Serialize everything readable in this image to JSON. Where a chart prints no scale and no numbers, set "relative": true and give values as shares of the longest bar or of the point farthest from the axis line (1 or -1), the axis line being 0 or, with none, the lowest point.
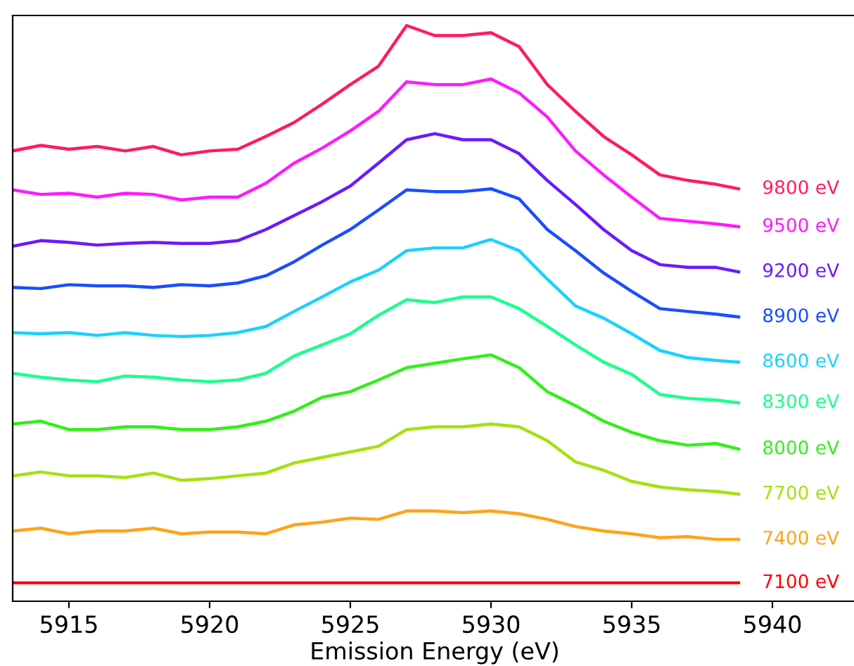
{
  "chart_data": {
    "type": "line",
    "relative": true,
    "xlabel": "Emission Energy (eV)",
    "xlim": [
      5913,
      5943
    ],
    "xticks": [
      5915,
      5920,
      5925,
      5930,
      5935,
      5940
    ],
    "tick_labels": "x",
    "grid": false,
    "legend": false,
    "marker": "none",
    "line_style": "solid",
    "x": [
      5913,
      5914,
      5915,
      5916,
      5917,
      5918,
      5919,
      5920,
      5921,
      5922,
      5923,
      5924,
      5925,
      5926,
      5927,
      5928,
      5929,
      5930,
      5931,
      5932,
      5933,
      5934,
      5935,
      5936,
      5937,
      5938,
      5938.8
    ],
    "series": [
      {
        "name": "7100 eV",
        "color": "#ff0000",
        "values": [
          0,
          0,
          0,
          0,
          0,
          0,
          0,
          0,
          0,
          0,
          0,
          0,
          0,
          0,
          0,
          0,
          0,
          0,
          0,
          0,
          0,
          0,
          0,
          0,
          0,
          0,
          0
        ]
      },
      {
        "name": "7400 eV",
        "color": "#ffa31a",
        "values": [
          0.093,
          0.098,
          0.088,
          0.093,
          0.093,
          0.098,
          0.088,
          0.091,
          0.091,
          0.088,
          0.104,
          0.109,
          0.116,
          0.114,
          0.129,
          0.129,
          0.126,
          0.129,
          0.124,
          0.114,
          0.101,
          0.093,
          0.088,
          0.081,
          0.083,
          0.078,
          0.078
        ]
      },
      {
        "name": "7700 eV",
        "color": "#a6e00f",
        "values": [
          0.192,
          0.199,
          0.192,
          0.192,
          0.189,
          0.197,
          0.184,
          0.187,
          0.192,
          0.197,
          0.215,
          0.225,
          0.235,
          0.245,
          0.275,
          0.28,
          0.28,
          0.285,
          0.28,
          0.255,
          0.217,
          0.202,
          0.182,
          0.172,
          0.167,
          0.164,
          0.159
        ]
      },
      {
        "name": "8000 eV",
        "color": "#33ee1a",
        "values": [
          0.285,
          0.29,
          0.275,
          0.275,
          0.28,
          0.28,
          0.275,
          0.275,
          0.28,
          0.29,
          0.308,
          0.333,
          0.343,
          0.364,
          0.386,
          0.394,
          0.402,
          0.409,
          0.386,
          0.343,
          0.318,
          0.29,
          0.27,
          0.255,
          0.247,
          0.25,
          0.24
        ]
      },
      {
        "name": "8300 eV",
        "color": "#1aff8c",
        "values": [
          0.376,
          0.369,
          0.364,
          0.361,
          0.371,
          0.369,
          0.364,
          0.361,
          0.364,
          0.376,
          0.407,
          0.427,
          0.447,
          0.48,
          0.508,
          0.503,
          0.513,
          0.513,
          0.492,
          0.46,
          0.427,
          0.396,
          0.374,
          0.338,
          0.331,
          0.328,
          0.323
        ]
      },
      {
        "name": "8600 eV",
        "color": "#1ad1ff",
        "values": [
          0.449,
          0.447,
          0.449,
          0.444,
          0.449,
          0.444,
          0.442,
          0.444,
          0.449,
          0.46,
          0.487,
          0.513,
          0.54,
          0.561,
          0.596,
          0.601,
          0.601,
          0.616,
          0.596,
          0.545,
          0.497,
          0.475,
          0.447,
          0.417,
          0.404,
          0.399,
          0.396
        ]
      },
      {
        "name": "8900 eV",
        "color": "#1a4dff",
        "values": [
          0.53,
          0.528,
          0.535,
          0.533,
          0.533,
          0.53,
          0.535,
          0.533,
          0.538,
          0.551,
          0.576,
          0.606,
          0.634,
          0.669,
          0.705,
          0.702,
          0.702,
          0.707,
          0.689,
          0.634,
          0.596,
          0.556,
          0.523,
          0.492,
          0.487,
          0.482,
          0.477
        ]
      },
      {
        "name": "9200 eV",
        "color": "#6a1aff",
        "values": [
          0.604,
          0.614,
          0.611,
          0.606,
          0.609,
          0.611,
          0.609,
          0.609,
          0.614,
          0.634,
          0.659,
          0.684,
          0.712,
          0.753,
          0.795,
          0.806,
          0.795,
          0.795,
          0.77,
          0.722,
          0.679,
          0.634,
          0.596,
          0.571,
          0.566,
          0.566,
          0.558
        ]
      },
      {
        "name": "9500 eV",
        "color": "#ff1aff",
        "values": [
          0.705,
          0.697,
          0.699,
          0.692,
          0.699,
          0.697,
          0.687,
          0.692,
          0.692,
          0.717,
          0.753,
          0.78,
          0.811,
          0.846,
          0.899,
          0.894,
          0.894,
          0.904,
          0.879,
          0.836,
          0.775,
          0.732,
          0.692,
          0.654,
          0.649,
          0.644,
          0.639
        ]
      },
      {
        "name": "9800 eV",
        "color": "#ff1a66",
        "values": [
          0.775,
          0.785,
          0.778,
          0.783,
          0.775,
          0.783,
          0.768,
          0.775,
          0.778,
          0.801,
          0.826,
          0.859,
          0.894,
          0.927,
          1.0,
          0.982,
          0.982,
          0.987,
          0.962,
          0.894,
          0.846,
          0.801,
          0.768,
          0.732,
          0.722,
          0.715,
          0.707
        ]
      }
    ]
  }
}
